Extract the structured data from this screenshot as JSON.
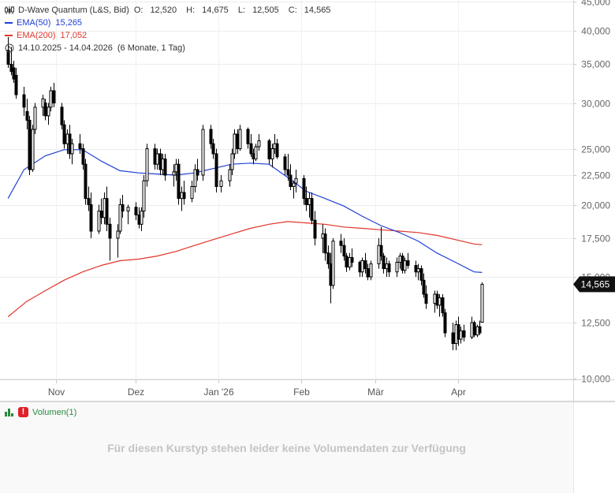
{
  "chart_data": {
    "type": "candlestick",
    "instrument": "D-Wave Quantum (L&S, Bid)",
    "ohlc": {
      "O": "12,520",
      "H": "14,675",
      "L": "12,505",
      "C": "14,565"
    },
    "last_price_label": "14,565",
    "period": "14.10.2025 - 14.04.2026",
    "period_note": "(6 Monate, 1 Tag)",
    "y_scale": "log",
    "y_ticks": [
      {
        "v": 10000,
        "label": "10,000"
      },
      {
        "v": 12500,
        "label": "12,500"
      },
      {
        "v": 15000,
        "label": "15,000"
      },
      {
        "v": 17500,
        "label": "17,500"
      },
      {
        "v": 20000,
        "label": "20,000"
      },
      {
        "v": 22500,
        "label": "22,500"
      },
      {
        "v": 25000,
        "label": "25,000"
      },
      {
        "v": 30000,
        "label": "30,000"
      },
      {
        "v": 35000,
        "label": "35,000"
      },
      {
        "v": 40000,
        "label": "40,000"
      },
      {
        "v": 45000,
        "label": "45,000"
      }
    ],
    "x_ticks": [
      {
        "date": "2025-11-01",
        "label": "Nov"
      },
      {
        "date": "2025-12-01",
        "label": "Dez"
      },
      {
        "date": "2026-01-01",
        "label": "Jan '26"
      },
      {
        "date": "2026-02-01",
        "label": "Feb"
      },
      {
        "date": "2026-03-01",
        "label": "Mär"
      },
      {
        "date": "2026-04-01",
        "label": "Apr"
      }
    ],
    "series": [
      {
        "name": "EMA(50)",
        "value_label": "15,265",
        "color": "#1f3fd6",
        "points": [
          [
            "2025-10-14",
            20500
          ],
          [
            "2025-10-20",
            23000
          ],
          [
            "2025-10-28",
            24300
          ],
          [
            "2025-11-04",
            24900
          ],
          [
            "2025-11-11",
            24900
          ],
          [
            "2025-11-18",
            23800
          ],
          [
            "2025-11-25",
            22900
          ],
          [
            "2025-12-02",
            22700
          ],
          [
            "2025-12-09",
            22600
          ],
          [
            "2025-12-16",
            22500
          ],
          [
            "2025-12-23",
            22700
          ],
          [
            "2025-12-30",
            23100
          ],
          [
            "2026-01-06",
            23500
          ],
          [
            "2026-01-13",
            23600
          ],
          [
            "2026-01-20",
            23500
          ],
          [
            "2026-01-27",
            22300
          ],
          [
            "2026-02-03",
            21100
          ],
          [
            "2026-02-10",
            20500
          ],
          [
            "2026-02-17",
            19900
          ],
          [
            "2026-02-24",
            19100
          ],
          [
            "2026-03-03",
            18400
          ],
          [
            "2026-03-10",
            17900
          ],
          [
            "2026-03-17",
            17300
          ],
          [
            "2026-03-24",
            16500
          ],
          [
            "2026-03-31",
            15900
          ],
          [
            "2026-04-07",
            15300
          ],
          [
            "2026-04-10",
            15265
          ]
        ]
      },
      {
        "name": "EMA(200)",
        "value_label": "17,052",
        "color": "#e0352b",
        "points": [
          [
            "2025-10-14",
            12800
          ],
          [
            "2025-10-21",
            13600
          ],
          [
            "2025-10-28",
            14200
          ],
          [
            "2025-11-04",
            14800
          ],
          [
            "2025-11-11",
            15300
          ],
          [
            "2025-11-18",
            15700
          ],
          [
            "2025-11-25",
            16000
          ],
          [
            "2025-12-02",
            16100
          ],
          [
            "2025-12-09",
            16300
          ],
          [
            "2025-12-16",
            16600
          ],
          [
            "2025-12-23",
            17000
          ],
          [
            "2025-12-30",
            17400
          ],
          [
            "2026-01-06",
            17800
          ],
          [
            "2026-01-13",
            18200
          ],
          [
            "2026-01-20",
            18500
          ],
          [
            "2026-01-27",
            18700
          ],
          [
            "2026-02-03",
            18600
          ],
          [
            "2026-02-10",
            18500
          ],
          [
            "2026-02-17",
            18300
          ],
          [
            "2026-02-24",
            18200
          ],
          [
            "2026-03-03",
            18100
          ],
          [
            "2026-03-10",
            18000
          ],
          [
            "2026-03-17",
            17900
          ],
          [
            "2026-03-24",
            17700
          ],
          [
            "2026-03-31",
            17400
          ],
          [
            "2026-04-07",
            17100
          ],
          [
            "2026-04-10",
            17052
          ]
        ]
      }
    ],
    "candles": [
      [
        "2025-10-14",
        37000,
        39000,
        34500,
        35000
      ],
      [
        "2025-10-15",
        35000,
        37500,
        33500,
        34000
      ],
      [
        "2025-10-16",
        34500,
        35500,
        32500,
        33000
      ],
      [
        "2025-10-17",
        33500,
        34500,
        30500,
        31000
      ],
      [
        "2025-10-20",
        31000,
        32000,
        28500,
        29500
      ],
      [
        "2025-10-21",
        29000,
        30500,
        27000,
        28000
      ],
      [
        "2025-10-22",
        28000,
        28500,
        22500,
        23000
      ],
      [
        "2025-10-23",
        23000,
        27500,
        22800,
        27000
      ],
      [
        "2025-10-24",
        27000,
        30000,
        26500,
        29500
      ],
      [
        "2025-10-27",
        29500,
        31000,
        28500,
        30500
      ],
      [
        "2025-10-28",
        30000,
        30500,
        28000,
        28500
      ],
      [
        "2025-10-29",
        28500,
        30000,
        27500,
        29500
      ],
      [
        "2025-10-30",
        29500,
        32000,
        29000,
        31500
      ],
      [
        "2025-10-31",
        31500,
        32500,
        29500,
        30000
      ],
      [
        "2025-11-03",
        29500,
        30000,
        27000,
        27500
      ],
      [
        "2025-11-04",
        27500,
        28000,
        25000,
        25500
      ],
      [
        "2025-11-05",
        25500,
        27000,
        24500,
        26500
      ],
      [
        "2025-11-06",
        26500,
        27500,
        24000,
        24500
      ],
      [
        "2025-11-07",
        24500,
        26000,
        23500,
        25500
      ],
      [
        "2025-11-10",
        25500,
        26500,
        24500,
        25000
      ],
      [
        "2025-11-11",
        25000,
        25500,
        23000,
        23500
      ],
      [
        "2025-11-12",
        23500,
        24000,
        20000,
        20500
      ],
      [
        "2025-11-13",
        20500,
        21500,
        19500,
        20000
      ],
      [
        "2025-11-14",
        20000,
        21000,
        17500,
        18000
      ],
      [
        "2025-11-17",
        18000,
        20000,
        17800,
        19500
      ],
      [
        "2025-11-18",
        19500,
        20500,
        18500,
        19000
      ],
      [
        "2025-11-19",
        19000,
        21000,
        18500,
        20500
      ],
      [
        "2025-11-20",
        20500,
        21500,
        18000,
        18500
      ],
      [
        "2025-11-21",
        18500,
        19000,
        16000,
        17500
      ],
      [
        "2025-11-24",
        17500,
        18500,
        16200,
        18000
      ],
      [
        "2025-11-25",
        18000,
        20500,
        17800,
        20000
      ],
      [
        "2025-11-26",
        20000,
        20800,
        19000,
        19500
      ],
      [
        "2025-11-28",
        19500,
        20000,
        18500,
        19800
      ],
      [
        "2025-12-01",
        19800,
        20200,
        18800,
        19200
      ],
      [
        "2025-12-02",
        19200,
        19800,
        18200,
        18500
      ],
      [
        "2025-12-03",
        18500,
        19800,
        18000,
        19500
      ],
      [
        "2025-12-04",
        19500,
        22500,
        19000,
        22000
      ],
      [
        "2025-12-05",
        22000,
        25500,
        21500,
        25000
      ],
      [
        "2025-12-08",
        25000,
        25500,
        23000,
        23500
      ],
      [
        "2025-12-09",
        23500,
        25000,
        23000,
        24500
      ],
      [
        "2025-12-10",
        24500,
        25000,
        22500,
        23000
      ],
      [
        "2025-12-11",
        23000,
        24500,
        22500,
        24000
      ],
      [
        "2025-12-12",
        24000,
        24500,
        22000,
        22500
      ],
      [
        "2025-12-15",
        22500,
        23500,
        21500,
        22800
      ],
      [
        "2025-12-16",
        22800,
        24000,
        22000,
        23500
      ],
      [
        "2025-12-17",
        23500,
        24000,
        20000,
        20500
      ],
      [
        "2025-12-18",
        20500,
        21500,
        19500,
        21000
      ],
      [
        "2025-12-19",
        21000,
        22000,
        20000,
        20500
      ],
      [
        "2025-12-22",
        20500,
        22000,
        20200,
        21500
      ],
      [
        "2025-12-23",
        21500,
        23500,
        21000,
        23000
      ],
      [
        "2025-12-24",
        23000,
        24000,
        22000,
        22500
      ],
      [
        "2025-12-26",
        22500,
        27500,
        22000,
        27000
      ],
      [
        "2025-12-29",
        27000,
        27500,
        25000,
        25500
      ],
      [
        "2025-12-30",
        25500,
        26000,
        24000,
        24500
      ],
      [
        "2025-12-31",
        24500,
        25000,
        21000,
        21500
      ],
      [
        "2026-01-02",
        21500,
        22500,
        21000,
        22000
      ],
      [
        "2026-01-05",
        22000,
        23500,
        21500,
        23000
      ],
      [
        "2026-01-06",
        23000,
        25000,
        22500,
        24500
      ],
      [
        "2026-01-07",
        24500,
        27000,
        24000,
        26500
      ],
      [
        "2026-01-08",
        26500,
        27000,
        24500,
        25000
      ],
      [
        "2026-01-09",
        25000,
        27500,
        24800,
        27000
      ],
      [
        "2026-01-12",
        27000,
        27200,
        25000,
        25500
      ],
      [
        "2026-01-13",
        25500,
        26500,
        24200,
        24500
      ],
      [
        "2026-01-14",
        24500,
        25000,
        23500,
        24000
      ],
      [
        "2026-01-15",
        24000,
        25500,
        23800,
        25200
      ],
      [
        "2026-01-16",
        25200,
        26500,
        24800,
        25800
      ],
      [
        "2026-01-20",
        25800,
        26000,
        23500,
        24000
      ],
      [
        "2026-01-21",
        24000,
        25500,
        23200,
        25000
      ],
      [
        "2026-01-22",
        25000,
        26500,
        24500,
        25500
      ],
      [
        "2026-01-23",
        25500,
        26000,
        24000,
        24200
      ],
      [
        "2026-01-26",
        24200,
        24500,
        22500,
        23000
      ],
      [
        "2026-01-27",
        23000,
        24500,
        22000,
        22500
      ],
      [
        "2026-01-28",
        22500,
        23500,
        21200,
        21500
      ],
      [
        "2026-01-29",
        21500,
        22000,
        20500,
        21800
      ],
      [
        "2026-01-30",
        21800,
        23000,
        21000,
        22200
      ],
      [
        "2026-02-02",
        22200,
        22500,
        20000,
        20500
      ],
      [
        "2026-02-03",
        20500,
        21500,
        19500,
        20000
      ],
      [
        "2026-02-04",
        20000,
        21000,
        19000,
        20500
      ],
      [
        "2026-02-05",
        20500,
        21000,
        18500,
        18800
      ],
      [
        "2026-02-06",
        18800,
        19500,
        17000,
        17500
      ],
      [
        "2026-02-09",
        17500,
        18500,
        16500,
        17800
      ],
      [
        "2026-02-10",
        17800,
        18200,
        16000,
        16500
      ],
      [
        "2026-02-11",
        16500,
        17000,
        15500,
        15800
      ],
      [
        "2026-02-12",
        15800,
        16500,
        13500,
        14500
      ],
      [
        "2026-02-13",
        14500,
        17500,
        14300,
        17300
      ],
      [
        "2026-02-16",
        17300,
        17800,
        16500,
        17000
      ],
      [
        "2026-02-17",
        17000,
        17500,
        16000,
        16300
      ],
      [
        "2026-02-18",
        16300,
        16500,
        15300,
        15600
      ],
      [
        "2026-02-19",
        15600,
        16500,
        15400,
        16200
      ],
      [
        "2026-02-20",
        16200,
        16800,
        15600,
        15900
      ],
      [
        "2026-02-23",
        15900,
        16000,
        15000,
        15300
      ],
      [
        "2026-02-24",
        15300,
        16200,
        15000,
        16000
      ],
      [
        "2026-02-25",
        16000,
        16500,
        15200,
        15500
      ],
      [
        "2026-02-26",
        15500,
        15800,
        14800,
        15000
      ],
      [
        "2026-02-27",
        15000,
        16000,
        14800,
        15800
      ],
      [
        "2026-03-02",
        15800,
        17500,
        15500,
        17000
      ],
      [
        "2026-03-03",
        17000,
        18300,
        16000,
        16300
      ],
      [
        "2026-03-04",
        16300,
        16500,
        15200,
        15500
      ],
      [
        "2026-03-05",
        15500,
        16200,
        15000,
        15800
      ],
      [
        "2026-03-06",
        15800,
        16000,
        15000,
        15300
      ],
      [
        "2026-03-09",
        15300,
        16200,
        15000,
        15900
      ],
      [
        "2026-03-10",
        15900,
        16500,
        15500,
        16300
      ],
      [
        "2026-03-11",
        16300,
        16500,
        15200,
        15400
      ],
      [
        "2026-03-12",
        15400,
        16200,
        15200,
        16000
      ],
      [
        "2026-03-13",
        16000,
        16500,
        15500,
        15700
      ],
      [
        "2026-03-16",
        15700,
        16000,
        15000,
        15300
      ],
      [
        "2026-03-17",
        15300,
        15800,
        14800,
        15500
      ],
      [
        "2026-03-18",
        15500,
        15700,
        14500,
        14800
      ],
      [
        "2026-03-19",
        14800,
        15200,
        13800,
        14000
      ],
      [
        "2026-03-20",
        14000,
        14500,
        13200,
        13500
      ],
      [
        "2026-03-23",
        13500,
        14200,
        13000,
        14000
      ],
      [
        "2026-03-24",
        14000,
        14200,
        13200,
        13400
      ],
      [
        "2026-03-25",
        13400,
        14000,
        12800,
        13800
      ],
      [
        "2026-03-26",
        13800,
        14000,
        12800,
        13000
      ],
      [
        "2026-03-27",
        13000,
        13200,
        11800,
        12000
      ],
      [
        "2026-03-30",
        12000,
        12500,
        11200,
        11500
      ],
      [
        "2026-03-31",
        11500,
        12600,
        11200,
        12400
      ],
      [
        "2026-04-01",
        12400,
        12800,
        11400,
        11700
      ],
      [
        "2026-04-02",
        11700,
        12300,
        11500,
        12100
      ],
      [
        "2026-04-03",
        12100,
        12400,
        11600,
        11800
      ],
      [
        "2026-04-06",
        11800,
        12800,
        11700,
        12500
      ],
      [
        "2026-04-07",
        12500,
        12600,
        11800,
        11900
      ],
      [
        "2026-04-08",
        11900,
        12400,
        11800,
        12300
      ],
      [
        "2026-04-09",
        12300,
        12600,
        11900,
        12000
      ],
      [
        "2026-04-10",
        12520,
        14675,
        12505,
        14565
      ]
    ]
  },
  "volume": {
    "label": "Volumen(1)",
    "message": "Für diesen Kurstyp stehen leider keine Volumendaten zur Verfügung"
  }
}
